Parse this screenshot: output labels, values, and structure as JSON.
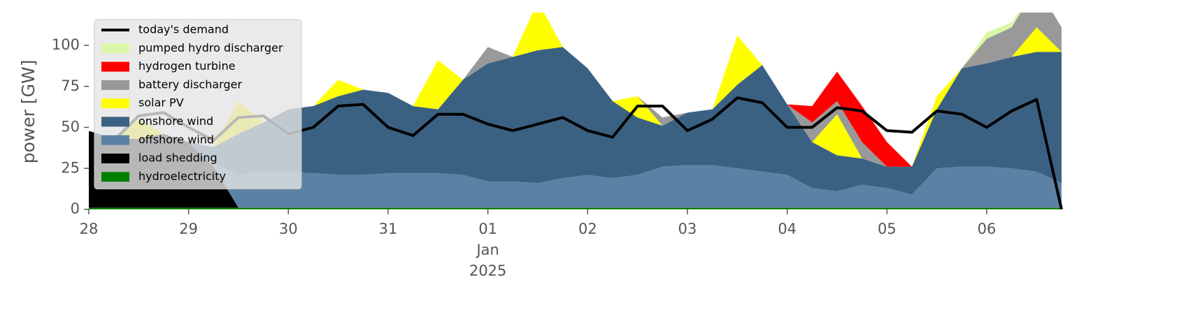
{
  "chart_data": {
    "type": "area",
    "ylabel": "power [GW]",
    "x": [
      0,
      0.25,
      0.5,
      0.75,
      1,
      1.25,
      1.5,
      1.75,
      2,
      2.25,
      2.5,
      2.75,
      3,
      3.25,
      3.5,
      3.75,
      4,
      4.25,
      4.5,
      4.75,
      5,
      5.25,
      5.5,
      5.75,
      6,
      6.25,
      6.5,
      6.75,
      7,
      7.25,
      7.5,
      7.75,
      8,
      8.25,
      8.5,
      8.75,
      9,
      9.25,
      9.5,
      9.75
    ],
    "xlim": [
      0,
      9.96
    ],
    "xticks": [
      {
        "value": 0,
        "label": "28"
      },
      {
        "value": 1,
        "label": "29"
      },
      {
        "value": 2,
        "label": "30"
      },
      {
        "value": 3,
        "label": "31"
      },
      {
        "value": 4,
        "label": "01\nJan\n2025"
      },
      {
        "value": 5,
        "label": "02"
      },
      {
        "value": 6,
        "label": "03"
      },
      {
        "value": 7,
        "label": "04"
      },
      {
        "value": 8,
        "label": "05"
      },
      {
        "value": 9,
        "label": "06"
      }
    ],
    "ylim": [
      0,
      120
    ],
    "yticks": [
      0,
      25,
      50,
      75,
      100
    ],
    "grid": false,
    "legend": "upper left",
    "demand": {
      "name": "today's demand",
      "color": "#000000",
      "values": [
        47,
        42,
        57,
        59,
        50,
        42,
        56,
        57,
        46,
        50,
        63,
        64,
        50,
        45,
        58,
        58,
        52,
        48,
        52,
        56,
        48,
        44,
        63,
        63,
        48,
        55,
        68,
        65,
        50,
        50,
        62,
        60,
        48,
        47,
        60,
        58,
        50,
        60,
        67,
        0
      ]
    },
    "series": [
      {
        "name": "hydroelectricity",
        "color": "#008000",
        "values": [
          1,
          1,
          1,
          1,
          1,
          1,
          1,
          1,
          1,
          1,
          1,
          1,
          1,
          1,
          1,
          1,
          1,
          1,
          1,
          1,
          1,
          1,
          1,
          1,
          1,
          1,
          1,
          1,
          1,
          1,
          1,
          1,
          1,
          1,
          1,
          1,
          1,
          1,
          1,
          1
        ]
      },
      {
        "name": "load shedding",
        "color": "#000000",
        "values": [
          46,
          42,
          42,
          45,
          40,
          25,
          0,
          0,
          0,
          0,
          0,
          0,
          0,
          0,
          0,
          0,
          0,
          0,
          0,
          0,
          0,
          0,
          0,
          0,
          0,
          0,
          0,
          0,
          0,
          0,
          0,
          0,
          0,
          0,
          0,
          0,
          0,
          0,
          0,
          0
        ]
      },
      {
        "name": "offshore wind",
        "color": "#5b82a4",
        "values": [
          0,
          0,
          0,
          0,
          0,
          2,
          20,
          22,
          22,
          21,
          20,
          20,
          21,
          21,
          21,
          20,
          16,
          16,
          15,
          18,
          20,
          18,
          20,
          25,
          26,
          26,
          24,
          22,
          20,
          12,
          10,
          14,
          12,
          8,
          24,
          25,
          25,
          24,
          22,
          15
        ]
      },
      {
        "name": "onshore wind",
        "color": "#3b6182",
        "values": [
          0,
          0,
          0,
          0,
          0,
          10,
          25,
          30,
          38,
          41,
          48,
          52,
          49,
          41,
          39,
          58,
          72,
          76,
          81,
          80,
          65,
          47,
          35,
          25,
          32,
          34,
          51,
          65,
          43,
          28,
          22,
          16,
          13,
          17,
          36,
          60,
          63,
          68,
          73,
          80
        ]
      },
      {
        "name": "solar PV",
        "color": "#ffff00",
        "values": [
          0,
          0,
          12,
          0,
          0,
          0,
          20,
          0,
          0,
          0,
          10,
          0,
          0,
          0,
          30,
          0,
          0,
          0,
          30,
          0,
          0,
          0,
          13,
          0,
          0,
          0,
          30,
          0,
          0,
          0,
          25,
          0,
          0,
          0,
          8,
          0,
          0,
          0,
          15,
          0
        ]
      },
      {
        "name": "battery discharger",
        "color": "#999999",
        "values": [
          0,
          0,
          0,
          0,
          0,
          0,
          0,
          0,
          0,
          0,
          0,
          0,
          0,
          0,
          0,
          0,
          10,
          0,
          0,
          0,
          0,
          0,
          0,
          5,
          0,
          0,
          0,
          0,
          0,
          12,
          8,
          10,
          0,
          0,
          0,
          0,
          15,
          18,
          25,
          15
        ]
      },
      {
        "name": "hydrogen turbine",
        "color": "#ff0000",
        "values": [
          0,
          0,
          0,
          0,
          0,
          0,
          0,
          0,
          0,
          0,
          0,
          0,
          0,
          0,
          0,
          0,
          0,
          0,
          0,
          0,
          0,
          0,
          0,
          0,
          0,
          0,
          0,
          0,
          0,
          10,
          18,
          22,
          15,
          0,
          0,
          0,
          0,
          0,
          0,
          0
        ]
      },
      {
        "name": "pumped hydro discharger",
        "color": "#d9f7a6",
        "values": [
          0,
          0,
          0,
          0,
          0,
          0,
          0,
          0,
          0,
          0,
          0,
          0,
          0,
          0,
          0,
          0,
          0,
          0,
          0,
          0,
          0,
          0,
          0,
          0,
          0,
          0,
          0,
          0,
          0,
          0,
          0,
          0,
          0,
          0,
          0,
          0,
          4,
          3,
          0,
          0
        ]
      }
    ]
  }
}
